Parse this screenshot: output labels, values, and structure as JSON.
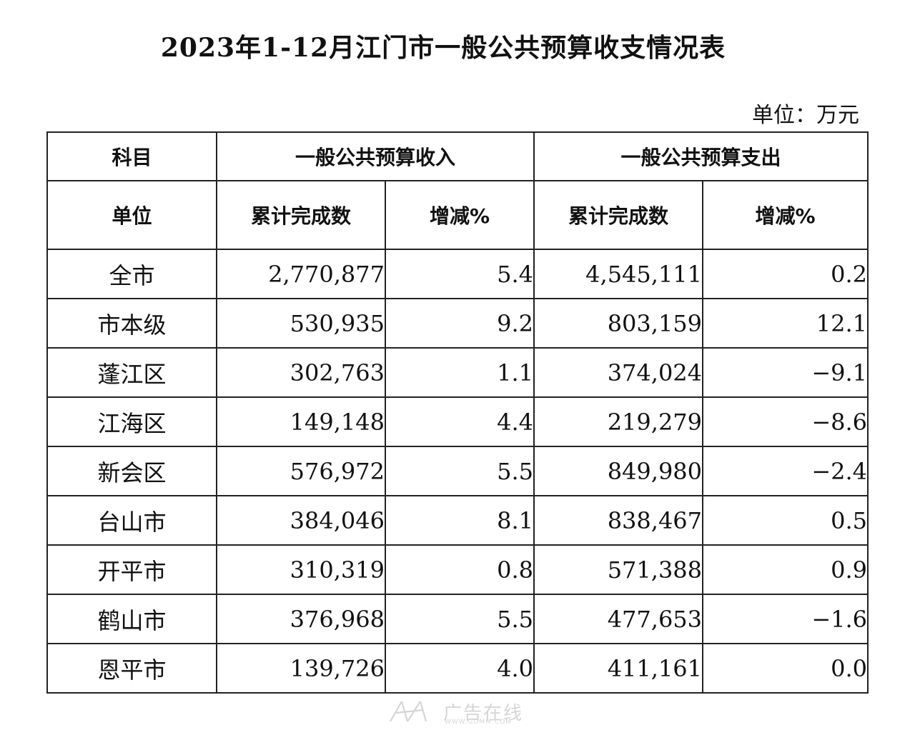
{
  "title": "2023年1-12月江门市一般公共预算收支情况表",
  "unit_label": "单位：万元",
  "header": {
    "subject": "科目",
    "income_group": "一般公共预算收入",
    "expense_group": "一般公共预算支出",
    "unit": "单位",
    "income_total": "累计完成数",
    "income_change": "增减%",
    "expense_total": "累计完成数",
    "expense_change": "增减%"
  },
  "rows": [
    {
      "name": "全市",
      "income": "2,770,877",
      "income_pct": "5.4",
      "expense": "4,545,111",
      "expense_pct": "0.2"
    },
    {
      "name": "市本级",
      "income": "530,935",
      "income_pct": "9.2",
      "expense": "803,159",
      "expense_pct": "12.1"
    },
    {
      "name": "蓬江区",
      "income": "302,763",
      "income_pct": "1.1",
      "expense": "374,024",
      "expense_pct": "−9.1"
    },
    {
      "name": "江海区",
      "income": "149,148",
      "income_pct": "4.4",
      "expense": "219,279",
      "expense_pct": "−8.6"
    },
    {
      "name": "新会区",
      "income": "576,972",
      "income_pct": "5.5",
      "expense": "849,980",
      "expense_pct": "−2.4"
    },
    {
      "name": "台山市",
      "income": "384,046",
      "income_pct": "8.1",
      "expense": "838,467",
      "expense_pct": "0.5"
    },
    {
      "name": "开平市",
      "income": "310,319",
      "income_pct": "0.8",
      "expense": "571,388",
      "expense_pct": "0.9"
    },
    {
      "name": "鹤山市",
      "income": "376,968",
      "income_pct": "5.5",
      "expense": "477,653",
      "expense_pct": "−1.6"
    },
    {
      "name": "恩平市",
      "income": "139,726",
      "income_pct": "4.0",
      "expense": "411,161",
      "expense_pct": "0.0"
    }
  ],
  "watermark": {
    "text": "广告在线",
    "url": "WWW.GDMM.COM",
    "color": "#8a8a8a"
  }
}
